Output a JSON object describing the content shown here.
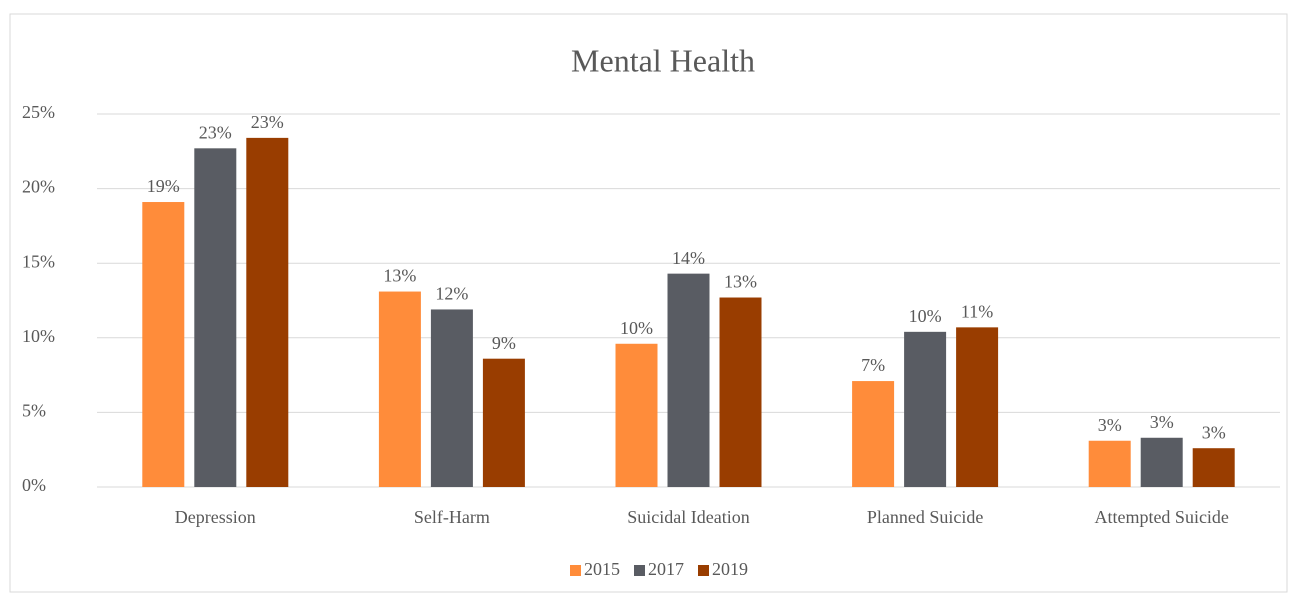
{
  "chart_data": {
    "type": "bar",
    "title": "Mental Health",
    "categories": [
      "Depression",
      "Self-Harm",
      "Suicidal Ideation",
      "Planned Suicide",
      "Attempted Suicide"
    ],
    "series": [
      {
        "name": "2015",
        "color": "#ff8c3a",
        "values": [
          19.1,
          13.1,
          9.6,
          7.1,
          3.1
        ],
        "value_labels": [
          "19%",
          "13%",
          "10%",
          "7%",
          "3%"
        ]
      },
      {
        "name": "2017",
        "color": "#595c63",
        "values": [
          22.7,
          11.9,
          14.3,
          10.4,
          3.3
        ],
        "value_labels": [
          "23%",
          "12%",
          "14%",
          "10%",
          "3%"
        ]
      },
      {
        "name": "2019",
        "color": "#993d00",
        "values": [
          23.4,
          8.6,
          12.7,
          10.7,
          2.6
        ],
        "value_labels": [
          "23%",
          "9%",
          "13%",
          "11%",
          "3%"
        ]
      }
    ],
    "ylim": [
      0,
      25
    ],
    "yticks": [
      {
        "value": 0,
        "label": "0%"
      },
      {
        "value": 5,
        "label": "5%"
      },
      {
        "value": 10,
        "label": "10%"
      },
      {
        "value": 15,
        "label": "15%"
      },
      {
        "value": 20,
        "label": "20%"
      },
      {
        "value": 25,
        "label": "25%"
      }
    ],
    "grid": true,
    "legend": "bottom"
  }
}
